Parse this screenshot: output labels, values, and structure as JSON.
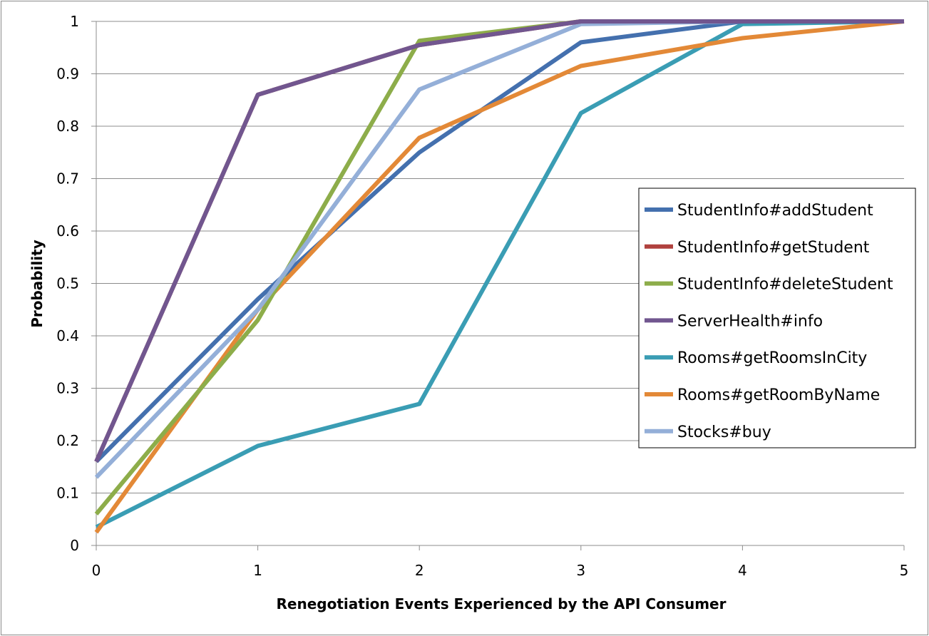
{
  "chart_data": {
    "type": "line",
    "title": "",
    "xlabel": "Renegotiation Events Experienced by the API Consumer",
    "ylabel": "Probability",
    "x": [
      0,
      1,
      2,
      3,
      4,
      5
    ],
    "x_tick_labels": [
      "0",
      "1",
      "2",
      "3",
      "4",
      "5"
    ],
    "y_tick_labels": [
      "0",
      "0.1",
      "0.2",
      "0.3",
      "0.4",
      "0.5",
      "0.6",
      "0.7",
      "0.8",
      "0.9",
      "1"
    ],
    "xlim": [
      0,
      5
    ],
    "ylim": [
      0,
      1
    ],
    "grid": "horizontal",
    "legend_position": "right",
    "series": [
      {
        "name": "StudentInfo#addStudent",
        "color": "#4470AE",
        "values": [
          0.16,
          0.47,
          0.75,
          0.96,
          1.0,
          1.0
        ]
      },
      {
        "name": "StudentInfo#getStudent",
        "color": "#B0413E",
        "values": [
          0.16,
          0.86,
          0.955,
          1.0,
          1.0,
          1.0
        ]
      },
      {
        "name": "StudentInfo#deleteStudent",
        "color": "#8DAD4A",
        "values": [
          0.06,
          0.43,
          0.963,
          1.0,
          1.0,
          1.0
        ]
      },
      {
        "name": "ServerHealth#info",
        "color": "#71568F",
        "values": [
          0.16,
          0.86,
          0.955,
          1.0,
          1.0,
          1.0
        ]
      },
      {
        "name": "Rooms#getRoomsInCity",
        "color": "#3A9DB4",
        "values": [
          0.035,
          0.19,
          0.27,
          0.825,
          0.995,
          1.0
        ]
      },
      {
        "name": "Rooms#getRoomByName",
        "color": "#E38937",
        "values": [
          0.025,
          0.45,
          0.778,
          0.915,
          0.968,
          1.0
        ]
      },
      {
        "name": "Stocks#buy",
        "color": "#94AFD8",
        "values": [
          0.13,
          0.45,
          0.87,
          0.995,
          1.0,
          1.0
        ]
      }
    ]
  }
}
